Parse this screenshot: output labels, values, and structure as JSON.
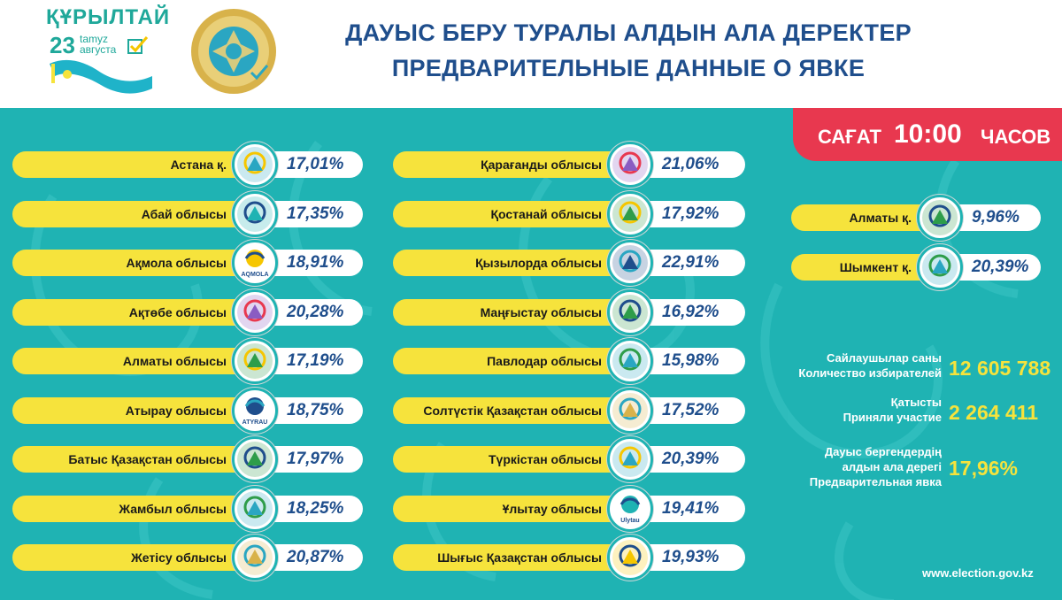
{
  "header": {
    "kurultai": {
      "word": "ҚҰРЫЛТАЙ",
      "day": "23",
      "month_kz": "tamyz",
      "month_ru": "августа"
    },
    "title_kz": "ДАУЫС БЕРУ ТУРАЛЫ АЛДЫН АЛА ДЕРЕКТЕР",
    "title_ru": "ПРЕДВАРИТЕЛЬНЫЕ ДАННЫЕ О ЯВКЕ"
  },
  "time_badge": {
    "prefix": "САҒАТ",
    "time": "10:00",
    "suffix": "ЧАСОВ"
  },
  "colors": {
    "panel": "#1fb3b3",
    "bar": "#f6e33c",
    "title": "#1f4e8c",
    "badge": "#e8384f",
    "stat_value": "#f6e33c"
  },
  "regions_left": [
    {
      "name": "Астана қ.",
      "pct": "17,01%",
      "logo": "astana-emblem-icon"
    },
    {
      "name": "Абай облысы",
      "pct": "17,35%",
      "logo": "abai-emblem-icon"
    },
    {
      "name": "Ақмола облысы",
      "pct": "18,91%",
      "logo": "akmola-emblem-icon",
      "logo_text": "AQMOLA"
    },
    {
      "name": "Ақтөбе облысы",
      "pct": "20,28%",
      "logo": "aktobe-emblem-icon"
    },
    {
      "name": "Алматы облысы",
      "pct": "17,19%",
      "logo": "almaty-oblast-emblem-icon"
    },
    {
      "name": "Атырау облысы",
      "pct": "18,75%",
      "logo": "atyrau-emblem-icon",
      "logo_text": "ATYRAU"
    },
    {
      "name": "Батыс Қазақстан облысы",
      "pct": "17,97%",
      "logo": "west-kz-emblem-icon"
    },
    {
      "name": "Жамбыл облысы",
      "pct": "18,25%",
      "logo": "zhambyl-emblem-icon"
    },
    {
      "name": "Жетісу облысы",
      "pct": "20,87%",
      "logo": "zhetisu-emblem-icon"
    }
  ],
  "regions_mid": [
    {
      "name": "Қарағанды облысы",
      "pct": "21,06%",
      "logo": "karaganda-emblem-icon"
    },
    {
      "name": "Қостанай облысы",
      "pct": "17,92%",
      "logo": "kostanay-emblem-icon"
    },
    {
      "name": "Қызылорда облысы",
      "pct": "22,91%",
      "logo": "kyzylorda-emblem-icon"
    },
    {
      "name": "Маңғыстау облысы",
      "pct": "16,92%",
      "logo": "mangystau-emblem-icon"
    },
    {
      "name": "Павлодар облысы",
      "pct": "15,98%",
      "logo": "pavlodar-emblem-icon"
    },
    {
      "name": "Солтүстік Қазақстан облысы",
      "pct": "17,52%",
      "logo": "north-kz-emblem-icon"
    },
    {
      "name": "Түркістан облысы",
      "pct": "20,39%",
      "logo": "turkistan-emblem-icon"
    },
    {
      "name": "Ұлытау облысы",
      "pct": "19,41%",
      "logo": "ulytau-emblem-icon",
      "logo_text": "Ulytau"
    },
    {
      "name": "Шығыс Қазақстан облысы",
      "pct": "19,93%",
      "logo": "east-kz-emblem-icon"
    }
  ],
  "regions_right": [
    {
      "name": "Алматы қ.",
      "pct": "9,96%",
      "logo": "almaty-city-emblem-icon"
    },
    {
      "name": "Шымкент қ.",
      "pct": "20,39%",
      "logo": "shymkent-emblem-icon"
    }
  ],
  "stats": {
    "voters_label_kz": "Сайлаушылар саны",
    "voters_label_ru": "Количество избирателей",
    "voters_value": "12 605 788",
    "participated_label_kz": "Қатысты",
    "participated_label_ru": "Приняли участие",
    "participated_value": "2 264 411",
    "turnout_label_kz1": "Дауыс бергендердің",
    "turnout_label_kz2": "алдын ала дерегі",
    "turnout_label_ru": "Предварительная явка",
    "turnout_value": "17,96%"
  },
  "footer": {
    "site": "www.election.gov.kz"
  }
}
